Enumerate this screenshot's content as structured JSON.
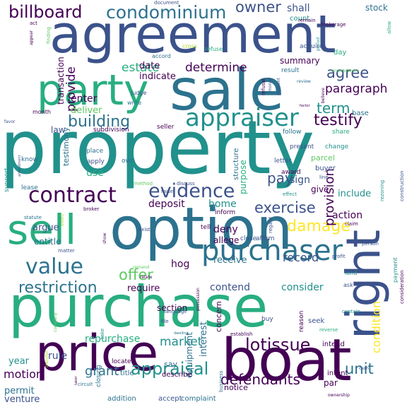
{
  "words": [
    "property",
    "agreement",
    "purchase",
    "option",
    "sale",
    "boat",
    "price",
    "party",
    "right",
    "sell",
    "purchaser",
    "contract",
    "appraiser",
    "value",
    "evidence",
    "appraisal",
    "damage",
    "condominium",
    "billboard",
    "defendants",
    "restriction",
    "building",
    "exercise",
    "lotissue",
    "testify",
    "term",
    "agree",
    "paragraph",
    "provision",
    "unit",
    "offer",
    "owner",
    "estate",
    "determine",
    "provide",
    "pay",
    "condition",
    "market",
    "grant",
    "repurchase",
    "motion",
    "record",
    "contend",
    "consider",
    "shall",
    "home",
    "deposit",
    "deny",
    "hog",
    "sign",
    "give",
    "use",
    "permit",
    "rule",
    "venture",
    "year",
    "receive",
    "require",
    "section",
    "allege",
    "include",
    "action",
    "interest",
    "equipment",
    "concern",
    "notice",
    "enter",
    "deliver",
    "date",
    "indicate",
    "summary",
    "purpose",
    "transaction",
    "law",
    "testimony",
    "argue",
    "entitle",
    "stock",
    "count",
    "day",
    "result",
    "acquire",
    "tell",
    "inform",
    "close",
    "affirm",
    "title",
    "say",
    "describe",
    "locate",
    "closing",
    "addition",
    "accept",
    "complaint",
    "par",
    "intent",
    "intend",
    "seek",
    "buy",
    "reason",
    "structure",
    "parcel",
    "buyer",
    "letter",
    "award",
    "present",
    "change",
    "base",
    "follow",
    "share",
    "seller",
    "subdivision",
    "apply",
    "own",
    "place",
    "know",
    "lease",
    "support",
    "month",
    "judge",
    "write",
    "circumstance",
    "refuse",
    "cross",
    "accord",
    "remain",
    "brokerage",
    "document",
    "allow",
    "finding",
    "appear",
    "act",
    "consideration",
    "construction",
    "payment",
    "person",
    "land",
    "ask",
    "claim",
    "rezoning",
    "profit",
    "regard",
    "exist",
    "broker",
    "raise",
    "discuss",
    "method",
    "effect",
    "line",
    "matter",
    "statute",
    "event",
    "show",
    "remand",
    "relate",
    "establish",
    "business",
    "circuit",
    "company",
    "reverse",
    "contain",
    "admit",
    "cash",
    "ownership",
    "language",
    "file",
    "take",
    "possession",
    "refusal",
    "money",
    "period",
    "review",
    "element",
    "believe",
    "favor",
    "amendment",
    "dwelling",
    "transfer",
    "taker",
    "factor"
  ],
  "colors": {
    "viridis_1": "#440154",
    "viridis_2": "#3b528b",
    "viridis_3": "#2c728e",
    "viridis_4": "#21918c",
    "viridis_5": "#28ae80",
    "viridis_6": "#5ec962",
    "viridis_7": "#addc30",
    "viridis_8": "#fde725",
    "background": "#ffffff"
  }
}
